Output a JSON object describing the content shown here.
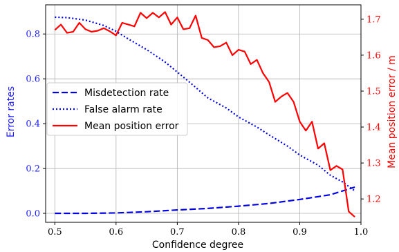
{
  "chart_data": {
    "type": "line",
    "xlabel": "Confidence degree",
    "ylabel_left": "Error rates",
    "ylabel_right": "Mean position error / m",
    "x_ticks": [
      "0.5",
      "0.6",
      "0.7",
      "0.8",
      "0.9",
      "1.0"
    ],
    "y_left_ticks": [
      "0.0",
      "0.2",
      "0.4",
      "0.6",
      "0.8"
    ],
    "y_right_ticks": [
      "1.2",
      "1.3",
      "1.4",
      "1.5",
      "1.6",
      "1.7"
    ],
    "xlim": [
      0.485,
      1.0
    ],
    "y_left_lim": [
      -0.04,
      0.93
    ],
    "y_right_lim": [
      1.135,
      1.74
    ],
    "grid": true,
    "legend_position": "center-left",
    "colors": {
      "left_axis": "#1f1fff",
      "right_axis": "#ff0000",
      "misdetection": "#0000dd",
      "false_alarm": "#0000dd",
      "position_error": "#ff0000"
    },
    "series": [
      {
        "name": "Misdetection rate",
        "axis": "left",
        "style": "dashed",
        "x": [
          0.5,
          0.55,
          0.6,
          0.65,
          0.7,
          0.75,
          0.8,
          0.85,
          0.9,
          0.95,
          0.99
        ],
        "values": [
          0.0,
          0.0,
          0.002,
          0.007,
          0.015,
          0.022,
          0.032,
          0.044,
          0.062,
          0.083,
          0.117
        ]
      },
      {
        "name": "False alarm rate",
        "axis": "left",
        "style": "dotted",
        "x": [
          0.5,
          0.52,
          0.55,
          0.58,
          0.6,
          0.62,
          0.65,
          0.68,
          0.7,
          0.72,
          0.75,
          0.78,
          0.8,
          0.83,
          0.85,
          0.88,
          0.9,
          0.93,
          0.95,
          0.97,
          0.99
        ],
        "values": [
          0.875,
          0.873,
          0.862,
          0.838,
          0.812,
          0.778,
          0.73,
          0.675,
          0.63,
          0.585,
          0.515,
          0.47,
          0.43,
          0.385,
          0.35,
          0.3,
          0.26,
          0.215,
          0.17,
          0.14,
          0.1
        ]
      },
      {
        "name": "Mean position error",
        "axis": "right",
        "style": "solid",
        "x": [
          0.5,
          0.51,
          0.52,
          0.53,
          0.54,
          0.55,
          0.56,
          0.57,
          0.58,
          0.59,
          0.6,
          0.61,
          0.62,
          0.63,
          0.64,
          0.65,
          0.66,
          0.67,
          0.68,
          0.69,
          0.7,
          0.71,
          0.72,
          0.73,
          0.74,
          0.75,
          0.76,
          0.77,
          0.78,
          0.79,
          0.8,
          0.81,
          0.82,
          0.83,
          0.84,
          0.85,
          0.86,
          0.87,
          0.88,
          0.89,
          0.9,
          0.91,
          0.92,
          0.93,
          0.94,
          0.95,
          0.96,
          0.97,
          0.98,
          0.99
        ],
        "values": [
          1.67,
          1.685,
          1.662,
          1.665,
          1.69,
          1.672,
          1.665,
          1.668,
          1.675,
          1.666,
          1.655,
          1.69,
          1.685,
          1.68,
          1.718,
          1.703,
          1.718,
          1.705,
          1.72,
          1.685,
          1.705,
          1.672,
          1.675,
          1.71,
          1.648,
          1.642,
          1.622,
          1.625,
          1.635,
          1.6,
          1.615,
          1.61,
          1.575,
          1.587,
          1.55,
          1.525,
          1.47,
          1.485,
          1.495,
          1.47,
          1.415,
          1.39,
          1.415,
          1.34,
          1.355,
          1.28,
          1.292,
          1.282,
          1.165,
          1.15
        ]
      }
    ]
  }
}
